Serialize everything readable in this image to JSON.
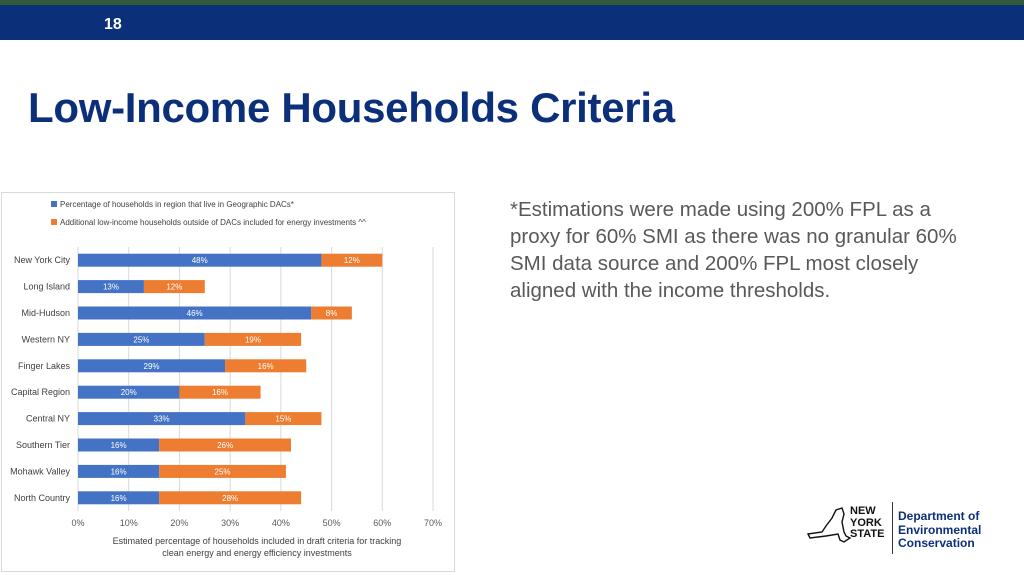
{
  "header": {
    "page_number": "18",
    "bar_color": "#0c2f7a"
  },
  "title": "Low-Income Households Criteria",
  "note": "*Estimations were made using 200% FPL as a proxy for 60% SMI as there was no granular 60% SMI  data source and 200% FPL most closely aligned with the income thresholds.",
  "chart_data": {
    "type": "bar",
    "orientation": "horizontal",
    "stacked": true,
    "categories": [
      "New York City",
      "Long Island",
      "Mid-Hudson",
      "Western NY",
      "Finger Lakes",
      "Capital Region",
      "Central NY",
      "Southern Tier",
      "Mohawk Valley",
      "North Country"
    ],
    "series": [
      {
        "name": "Percentage of households in region that live in Geographic DACs*",
        "color": "#4472c4",
        "values": [
          48,
          13,
          46,
          25,
          29,
          20,
          33,
          16,
          16,
          16
        ],
        "labels": [
          "48%",
          "13%",
          "46%",
          "25%",
          "29%",
          "20%",
          "33%",
          "16%",
          "16%",
          "16%"
        ]
      },
      {
        "name": "Additional low-income households outside of DACs included for energy investments ^^",
        "color": "#ed7d31",
        "values": [
          12,
          12,
          8,
          19,
          16,
          16,
          15,
          26,
          25,
          28
        ],
        "labels": [
          "12%",
          "12%",
          "8%",
          "19%",
          "16%",
          "16%",
          "15%",
          "26%",
          "25%",
          "28%"
        ]
      }
    ],
    "xlim": [
      0,
      70
    ],
    "xticks": [
      0,
      10,
      20,
      30,
      40,
      50,
      60,
      70
    ],
    "xtick_labels": [
      "0%",
      "10%",
      "20%",
      "30%",
      "40%",
      "50%",
      "60%",
      "70%"
    ],
    "xlabel_lines": [
      "Estimated percentage  of households included in draft criteria for tracking",
      "clean energy and energy  efficiency investments"
    ],
    "grid": "vertical",
    "legend_position": "top-left"
  },
  "logo": {
    "ny_lines": [
      "NEW",
      "YORK",
      "STATE"
    ],
    "dept_lines": [
      "Department of",
      "Environmental",
      "Conservation"
    ]
  }
}
